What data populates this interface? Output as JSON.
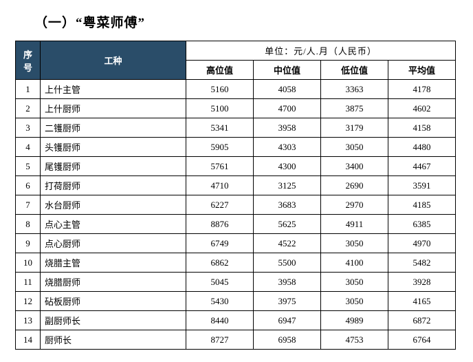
{
  "heading": "（一）“粤菜师傅”",
  "table": {
    "header_idx": "序号",
    "header_name": "工种",
    "unit_line": "单位：元/人.月（人民币）",
    "sub_headers": [
      "高位值",
      "中位值",
      "低位值",
      "平均值"
    ],
    "columns": [
      "idx",
      "name",
      "high",
      "mid",
      "low",
      "avg"
    ],
    "rows": [
      {
        "idx": "1",
        "name": "上什主管",
        "high": "5160",
        "mid": "4058",
        "low": "3363",
        "avg": "4178"
      },
      {
        "idx": "2",
        "name": "上什厨师",
        "high": "5100",
        "mid": "4700",
        "low": "3875",
        "avg": "4602"
      },
      {
        "idx": "3",
        "name": "二镬厨师",
        "high": "5341",
        "mid": "3958",
        "low": "3179",
        "avg": "4158"
      },
      {
        "idx": "4",
        "name": "头镬厨师",
        "high": "5905",
        "mid": "4303",
        "low": "3050",
        "avg": "4480"
      },
      {
        "idx": "5",
        "name": "尾镬厨师",
        "high": "5761",
        "mid": "4300",
        "low": "3400",
        "avg": "4467"
      },
      {
        "idx": "6",
        "name": "打荷厨师",
        "high": "4710",
        "mid": "3125",
        "low": "2690",
        "avg": "3591"
      },
      {
        "idx": "7",
        "name": "水台厨师",
        "high": "6227",
        "mid": "3683",
        "low": "2970",
        "avg": "4185"
      },
      {
        "idx": "8",
        "name": "点心主管",
        "high": "8876",
        "mid": "5625",
        "low": "4911",
        "avg": "6385"
      },
      {
        "idx": "9",
        "name": "点心厨师",
        "high": "6749",
        "mid": "4522",
        "low": "3050",
        "avg": "4970"
      },
      {
        "idx": "10",
        "name": "烧腊主管",
        "high": "6862",
        "mid": "5500",
        "low": "4100",
        "avg": "5482"
      },
      {
        "idx": "11",
        "name": "烧腊厨师",
        "high": "5045",
        "mid": "3958",
        "low": "3050",
        "avg": "3928"
      },
      {
        "idx": "12",
        "name": "砧板厨师",
        "high": "5430",
        "mid": "3975",
        "low": "3050",
        "avg": "4165"
      },
      {
        "idx": "13",
        "name": "副厨师长",
        "high": "8440",
        "mid": "6947",
        "low": "4989",
        "avg": "6872"
      },
      {
        "idx": "14",
        "name": "厨师长",
        "high": "8727",
        "mid": "6958",
        "low": "4753",
        "avg": "6764"
      }
    ],
    "colors": {
      "header_bg": "#2a4d69",
      "header_fg": "#ffffff",
      "border": "#000000",
      "page_bg": "#ffffff"
    },
    "font": {
      "heading_size_pt": 14,
      "cell_size_pt": 10,
      "family": "SimSun"
    }
  }
}
